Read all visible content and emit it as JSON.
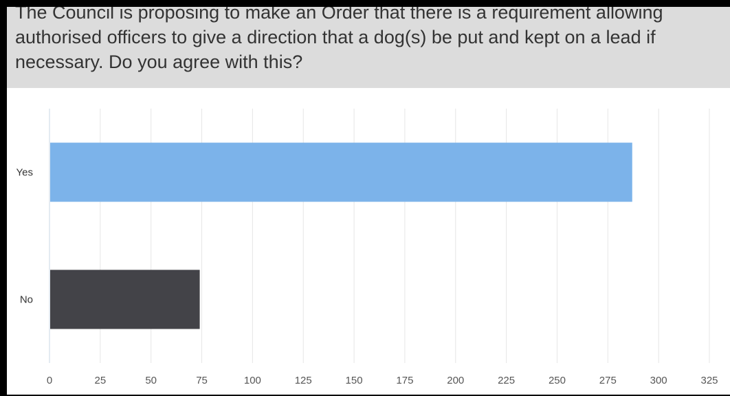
{
  "question": {
    "text": "The Council is proposing to make an Order that there is a requirement allowing authorised officers to give a direction that a dog(s) be put and kept on a lead if necessary. Do you agree with this?"
  },
  "colors": {
    "yes_bar": "#7cb3ea",
    "no_bar": "#434348",
    "grid": "#e6e6e6",
    "banner": "#dcdcdc"
  },
  "chart_data": {
    "type": "bar",
    "orientation": "horizontal",
    "title": "The Council is proposing to make an Order that there is a requirement allowing authorised officers to give a direction that a dog(s) be put and kept on a lead if necessary. Do you agree with this?",
    "categories": [
      "Yes",
      "No"
    ],
    "values": [
      287,
      74
    ],
    "xlabel": "",
    "ylabel": "",
    "xlim": [
      0,
      325
    ],
    "xticks": [
      0,
      25,
      50,
      75,
      100,
      125,
      150,
      175,
      200,
      225,
      250,
      275,
      300,
      325
    ],
    "grid": true,
    "legend": "none"
  }
}
